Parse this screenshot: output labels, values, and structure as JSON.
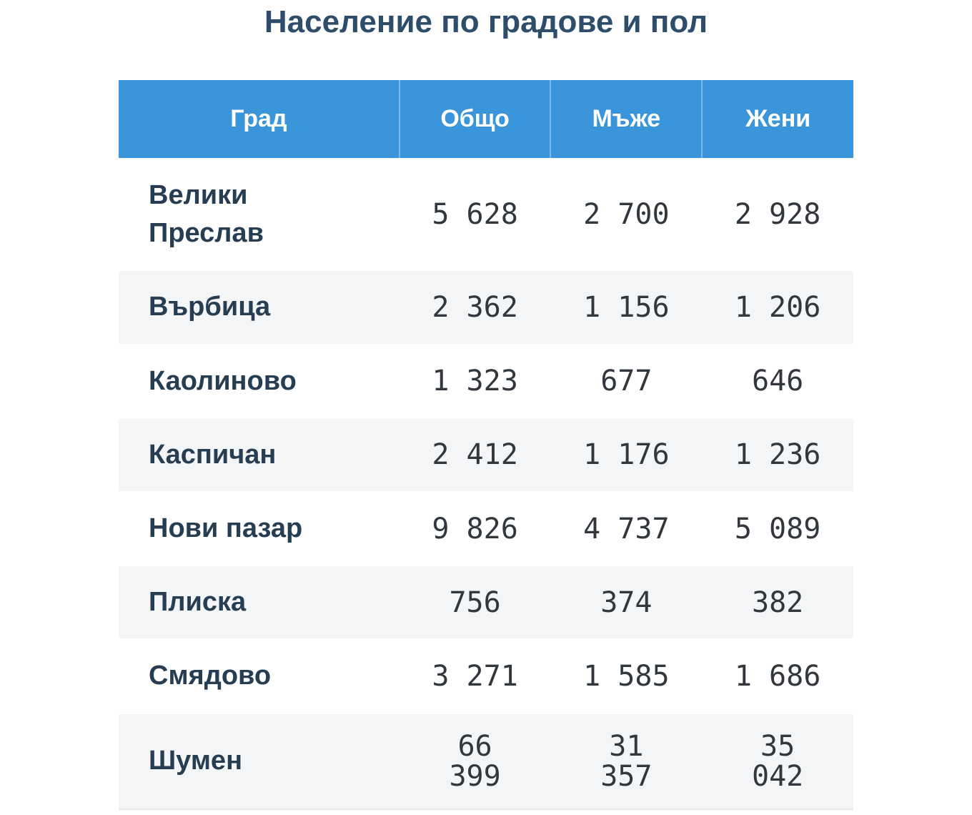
{
  "title": "Население по градове и пол",
  "table": {
    "columns": [
      "Град",
      "Общо",
      "Мъже",
      "Жени"
    ],
    "rows": [
      {
        "city": "Велики Преслав",
        "total": "5 628",
        "men": "2 700",
        "women": "2 928"
      },
      {
        "city": "Върбица",
        "total": "2 362",
        "men": "1 156",
        "women": "1 206"
      },
      {
        "city": "Каолиново",
        "total": "1 323",
        "men": "677",
        "women": "646"
      },
      {
        "city": "Каспичан",
        "total": "2 412",
        "men": "1 176",
        "women": "1 236"
      },
      {
        "city": "Нови пазар",
        "total": "9 826",
        "men": "4 737",
        "women": "5 089"
      },
      {
        "city": "Плиска",
        "total": "756",
        "men": "374",
        "women": "382"
      },
      {
        "city": "Смядово",
        "total": "3 271",
        "men": "1 585",
        "women": "1 686"
      },
      {
        "city": "Шумен",
        "total": "66 399",
        "men": "31 357",
        "women": "35 042"
      }
    ]
  },
  "colors": {
    "header_bg": "#3a95da",
    "header_text": "#ffffff",
    "stripe": "#f4f5f6",
    "title_text": "#2e4d6b",
    "city_text": "#273d52",
    "number_text": "#31373d"
  },
  "chart_data": {
    "type": "table",
    "title": "Население по градове и пол",
    "columns": [
      "Град",
      "Общо",
      "Мъже",
      "Жени"
    ],
    "rows": [
      [
        "Велики Преслав",
        5628,
        2700,
        2928
      ],
      [
        "Върбица",
        2362,
        1156,
        1206
      ],
      [
        "Каолиново",
        1323,
        677,
        646
      ],
      [
        "Каспичан",
        2412,
        1176,
        1236
      ],
      [
        "Нови пазар",
        9826,
        4737,
        5089
      ],
      [
        "Плиска",
        756,
        374,
        382
      ],
      [
        "Смядово",
        3271,
        1585,
        1686
      ],
      [
        "Шумен",
        66399,
        31357,
        35042
      ]
    ]
  }
}
